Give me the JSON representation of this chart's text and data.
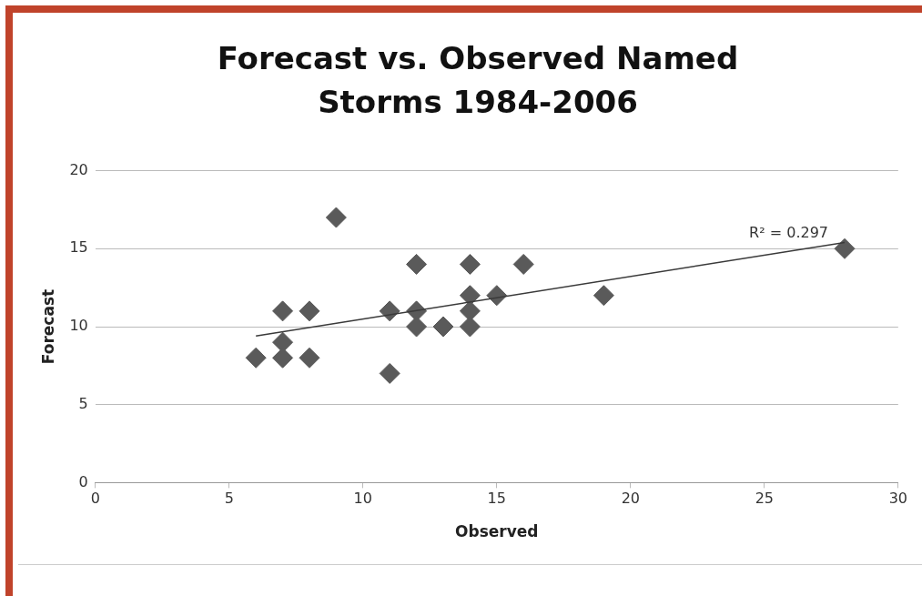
{
  "chart_data": {
    "type": "scatter",
    "title": "Forecast vs. Observed Named Storms 1984-2006",
    "xlabel": "Observed",
    "ylabel": "Forecast",
    "xlim": [
      0,
      30
    ],
    "xticks": [
      0,
      5,
      10,
      15,
      20,
      25,
      30
    ],
    "ylim": [
      0,
      20
    ],
    "yticks": [
      0,
      5,
      10,
      15,
      20
    ],
    "grid": "y",
    "legend": false,
    "marker": "diamond",
    "series": [
      {
        "color": "#5a5a5a",
        "x": [
          6,
          7,
          7,
          7,
          8,
          8,
          9,
          11,
          11,
          12,
          12,
          12,
          13,
          14,
          14,
          14,
          14,
          15,
          16,
          19,
          28
        ],
        "values": [
          8,
          11,
          9,
          8,
          11,
          8,
          17,
          11,
          7,
          14,
          11,
          10,
          10,
          14,
          12,
          11,
          10,
          12,
          14,
          12,
          15
        ]
      },
      {
        "type": "line",
        "color": "#3a3a3a",
        "marker": "none",
        "x": [
          6,
          28
        ],
        "values": [
          9.4,
          15.4
        ]
      }
    ],
    "annotations": [
      "R² = 0.297"
    ]
  }
}
